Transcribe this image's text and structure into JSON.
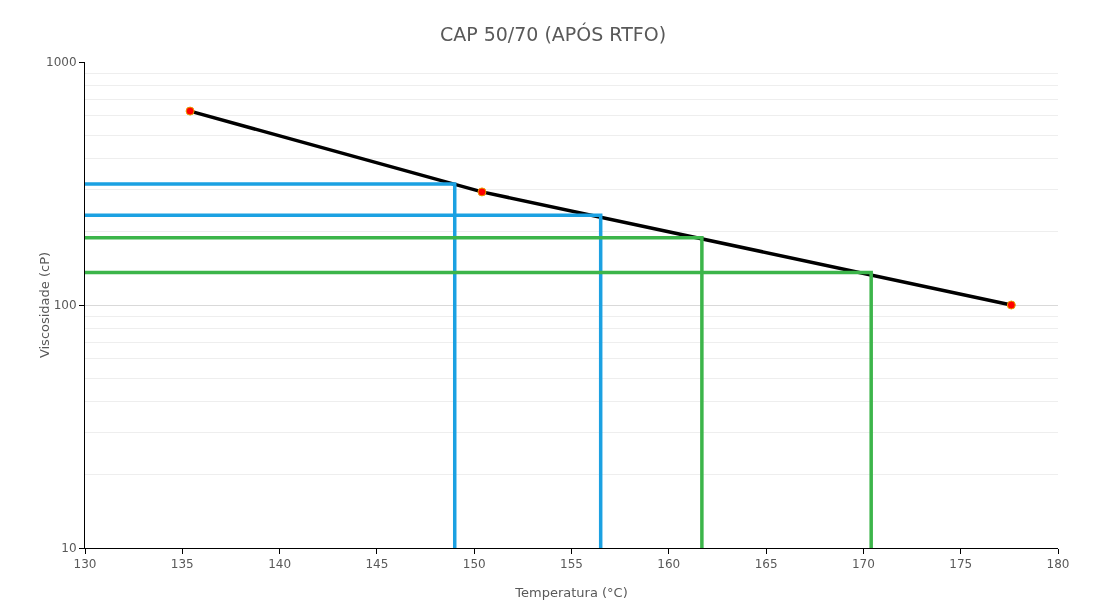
{
  "chart_data": {
    "type": "line",
    "title": "CAP 50/70 (APÓS RTFO)",
    "xlabel": "Temperatura (°C)",
    "ylabel": "Viscosidade (cP)",
    "log": "y",
    "grid": "y",
    "xlim": [
      130,
      180
    ],
    "xticks": [
      130,
      135,
      140,
      145,
      150,
      155,
      160,
      165,
      170,
      175,
      180
    ],
    "ylim": [
      10,
      1000
    ],
    "yticks": [
      10,
      100,
      1000
    ],
    "series": [
      {
        "color": "#000000",
        "x": [
          135.4,
          150.4,
          177.6
        ],
        "values": [
          628,
          292,
          100
        ],
        "marker": "none"
      },
      {
        "color": "#1ba1e2",
        "x": [
          130,
          149,
          149
        ],
        "values": [
          315,
          315,
          10
        ],
        "marker": "none"
      },
      {
        "color": "#1ba1e2",
        "x": [
          130,
          156.5,
          156.5
        ],
        "values": [
          234,
          234,
          10
        ],
        "marker": "none"
      },
      {
        "color": "#3cb54a",
        "x": [
          130,
          161.7,
          161.7
        ],
        "values": [
          189,
          189,
          10
        ],
        "marker": "none"
      },
      {
        "color": "#3cb54a",
        "x": [
          130,
          170.4,
          170.4
        ],
        "values": [
          136,
          136,
          10
        ],
        "marker": "none"
      },
      {
        "type": "scatter",
        "color": "#ff0000",
        "x": [
          135.4,
          150.4,
          177.6
        ],
        "values": [
          628,
          292,
          100
        ],
        "marker": "circle"
      }
    ]
  }
}
